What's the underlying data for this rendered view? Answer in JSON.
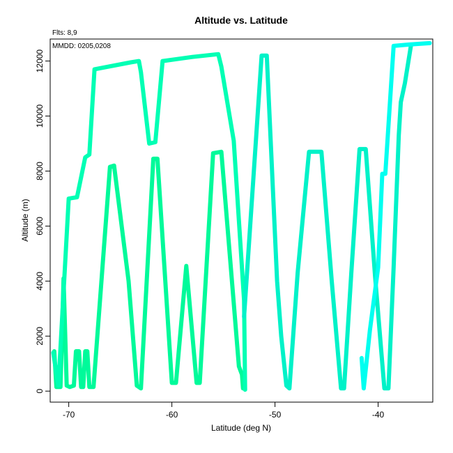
{
  "chart_data": {
    "type": "line",
    "title": "Altitude vs. Latitude",
    "xlabel": "Latitude (deg N)",
    "ylabel": "Altitude (m)",
    "xlim": [
      -71.8,
      -34.7
    ],
    "ylim": [
      -400,
      12800
    ],
    "x_ticks": [
      -70,
      -60,
      -50,
      -40
    ],
    "y_ticks": [
      0,
      2000,
      4000,
      6000,
      8000,
      10000,
      12000
    ],
    "grid": false,
    "annotations": [
      "Flts: 8,9",
      "MMDD: 0205,0208"
    ],
    "series": [
      {
        "color": "#00fa9a",
        "points": [
          [
            -71.4,
            1450
          ],
          [
            -71.2,
            150
          ],
          [
            -70.8,
            150
          ],
          [
            -70.5,
            4100
          ],
          [
            -70.2,
            200
          ],
          [
            -69.9,
            150
          ],
          [
            -69.5,
            200
          ],
          [
            -69.3,
            1450
          ],
          [
            -69.0,
            1450
          ],
          [
            -68.8,
            150
          ],
          [
            -68.6,
            150
          ],
          [
            -68.4,
            1450
          ],
          [
            -68.2,
            1450
          ],
          [
            -68.0,
            150
          ],
          [
            -67.6,
            150
          ],
          [
            -66.0,
            8150
          ],
          [
            -65.6,
            8200
          ],
          [
            -64.2,
            4000
          ],
          [
            -63.4,
            200
          ],
          [
            -63.0,
            100
          ],
          [
            -61.8,
            8450
          ],
          [
            -61.4,
            8450
          ],
          [
            -60.0,
            300
          ],
          [
            -59.6,
            300
          ],
          [
            -58.6,
            4550
          ],
          [
            -57.6,
            300
          ],
          [
            -57.3,
            300
          ],
          [
            -56.0,
            8650
          ],
          [
            -55.2,
            8700
          ],
          [
            -54.0,
            3200
          ],
          [
            -53.5,
            900
          ],
          [
            -53.2,
            600
          ],
          [
            -53.1,
            100
          ]
        ]
      },
      {
        "color": "#00ffb4",
        "points": [
          [
            -71.5,
            1400
          ],
          [
            -71.0,
            200
          ],
          [
            -70.0,
            7000
          ],
          [
            -69.2,
            7050
          ],
          [
            -68.4,
            8500
          ],
          [
            -68.0,
            8600
          ],
          [
            -67.5,
            11700
          ],
          [
            -64.0,
            11950
          ],
          [
            -63.2,
            12000
          ],
          [
            -63.0,
            11600
          ],
          [
            -62.2,
            9000
          ],
          [
            -61.6,
            9050
          ],
          [
            -60.9,
            12000
          ],
          [
            -58.0,
            12150
          ],
          [
            -55.5,
            12250
          ],
          [
            -55.2,
            11800
          ],
          [
            -54.0,
            9100
          ],
          [
            -53.0,
            3300
          ],
          [
            -52.9,
            50
          ]
        ]
      },
      {
        "color": "#00f2c8",
        "points": [
          [
            -53.0,
            2700
          ],
          [
            -51.3,
            12200
          ],
          [
            -50.8,
            12200
          ],
          [
            -49.8,
            4000
          ],
          [
            -49.4,
            2000
          ],
          [
            -48.9,
            200
          ],
          [
            -48.6,
            100
          ],
          [
            -47.8,
            4300
          ],
          [
            -46.7,
            8700
          ],
          [
            -45.5,
            8700
          ],
          [
            -44.5,
            4000
          ],
          [
            -43.6,
            100
          ],
          [
            -43.3,
            100
          ],
          [
            -42.6,
            4300
          ],
          [
            -41.8,
            8800
          ],
          [
            -41.2,
            8800
          ],
          [
            -40.3,
            4200
          ],
          [
            -39.4,
            100
          ],
          [
            -39.0,
            100
          ],
          [
            -38.5,
            4500
          ],
          [
            -38.0,
            9300
          ],
          [
            -37.8,
            10500
          ],
          [
            -37.4,
            11200
          ],
          [
            -36.8,
            12600
          ]
        ]
      },
      {
        "color": "#00fff0",
        "points": [
          [
            -41.6,
            1200
          ],
          [
            -41.4,
            100
          ],
          [
            -40.8,
            2200
          ],
          [
            -40.0,
            4500
          ],
          [
            -39.6,
            7900
          ],
          [
            -39.3,
            7900
          ],
          [
            -38.5,
            12550
          ],
          [
            -37.0,
            12600
          ],
          [
            -35.0,
            12650
          ]
        ]
      }
    ]
  }
}
